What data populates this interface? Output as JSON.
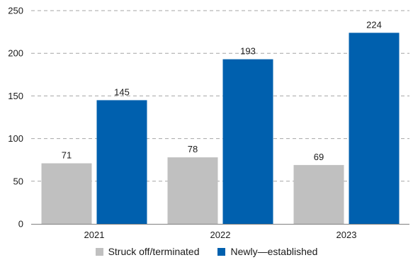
{
  "chart_data": {
    "type": "bar",
    "categories": [
      "2021",
      "2022",
      "2023"
    ],
    "series": [
      {
        "name": "Struck off/terminated",
        "values": [
          71,
          78,
          69
        ],
        "color": "#c0c0c0"
      },
      {
        "name": "Newly—established",
        "values": [
          145,
          193,
          224
        ],
        "color": "#0060ae"
      }
    ],
    "ylim": [
      0,
      250
    ],
    "yticks": [
      0,
      50,
      100,
      150,
      200,
      250
    ],
    "grid": true,
    "legend_position": "bottom-center",
    "data_labels": true
  }
}
